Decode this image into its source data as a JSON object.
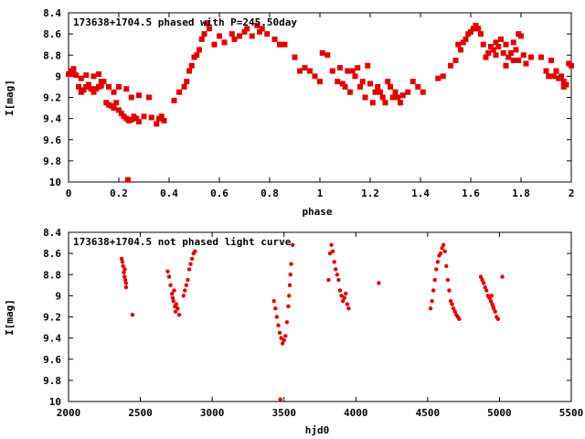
{
  "chart_data": [
    {
      "type": "scatter",
      "title": "173638+1704.5 phased with P=245.50day",
      "xlabel": "phase",
      "ylabel": "I[mag]",
      "xlim": [
        0,
        2
      ],
      "ylim": [
        10,
        8.4
      ],
      "y_inverted": true,
      "grid": false,
      "x_ticks": [
        "0",
        "0.2",
        "0.4",
        "0.6",
        "0.8",
        "1",
        "1.2",
        "1.4",
        "1.6",
        "1.8",
        "2"
      ],
      "y_ticks": [
        "8.4",
        "8.6",
        "8.8",
        "9",
        "9.2",
        "9.4",
        "9.6",
        "9.8",
        "10"
      ],
      "marker_color": "#e00000",
      "marker": "filled-square",
      "series": [
        {
          "points": [
            [
              0.0,
              8.98
            ],
            [
              0.01,
              8.95
            ],
            [
              0.02,
              8.93
            ],
            [
              0.03,
              8.99
            ],
            [
              0.04,
              9.1
            ],
            [
              0.05,
              9.15
            ],
            [
              0.06,
              9.13
            ],
            [
              0.07,
              9.1
            ],
            [
              0.08,
              9.08
            ],
            [
              0.09,
              9.12
            ],
            [
              0.1,
              9.15
            ],
            [
              0.11,
              9.12
            ],
            [
              0.12,
              9.1
            ],
            [
              0.13,
              9.09
            ],
            [
              0.14,
              9.05
            ],
            [
              0.15,
              9.25
            ],
            [
              0.16,
              9.27
            ],
            [
              0.17,
              9.28
            ],
            [
              0.18,
              9.3
            ],
            [
              0.19,
              9.25
            ],
            [
              0.2,
              9.32
            ],
            [
              0.21,
              9.35
            ],
            [
              0.22,
              9.38
            ],
            [
              0.23,
              9.4
            ],
            [
              0.24,
              9.42
            ],
            [
              0.25,
              9.41
            ],
            [
              0.26,
              9.38
            ],
            [
              0.27,
              9.4
            ],
            [
              0.28,
              9.43
            ],
            [
              0.3,
              9.38
            ],
            [
              0.32,
              9.2
            ],
            [
              0.33,
              9.39
            ],
            [
              0.35,
              9.45
            ],
            [
              0.36,
              9.4
            ],
            [
              0.37,
              9.38
            ],
            [
              0.38,
              9.42
            ],
            [
              0.236,
              9.98
            ],
            [
              0.02,
              8.98
            ],
            [
              0.05,
              9.02
            ],
            [
              0.07,
              8.99
            ],
            [
              0.1,
              9.0
            ],
            [
              0.12,
              8.98
            ],
            [
              0.13,
              9.05
            ],
            [
              0.16,
              9.1
            ],
            [
              0.18,
              9.15
            ],
            [
              0.2,
              9.1
            ],
            [
              0.23,
              9.12
            ],
            [
              0.25,
              9.2
            ],
            [
              0.28,
              9.18
            ],
            [
              0.42,
              9.23
            ],
            [
              0.44,
              9.15
            ],
            [
              0.46,
              9.1
            ],
            [
              0.47,
              9.05
            ],
            [
              0.48,
              8.95
            ],
            [
              0.49,
              8.9
            ],
            [
              0.5,
              8.82
            ],
            [
              0.51,
              8.8
            ],
            [
              0.52,
              8.75
            ],
            [
              0.53,
              8.65
            ],
            [
              0.54,
              8.6
            ],
            [
              0.55,
              8.5
            ],
            [
              0.56,
              8.55
            ],
            [
              0.58,
              8.7
            ],
            [
              0.6,
              8.62
            ],
            [
              0.62,
              8.68
            ],
            [
              0.65,
              8.6
            ],
            [
              0.66,
              8.65
            ],
            [
              0.68,
              8.62
            ],
            [
              0.7,
              8.58
            ],
            [
              0.71,
              8.55
            ],
            [
              0.73,
              8.62
            ],
            [
              0.75,
              8.52
            ],
            [
              0.76,
              8.58
            ],
            [
              0.77,
              8.55
            ],
            [
              0.79,
              8.6
            ],
            [
              0.82,
              8.65
            ],
            [
              0.84,
              8.7
            ],
            [
              0.86,
              8.7
            ],
            [
              0.9,
              8.82
            ],
            [
              0.92,
              8.95
            ],
            [
              0.94,
              8.92
            ],
            [
              0.96,
              8.95
            ],
            [
              0.98,
              9.0
            ],
            [
              1.0,
              9.05
            ],
            [
              1.01,
              8.78
            ],
            [
              1.03,
              8.8
            ],
            [
              1.05,
              8.95
            ],
            [
              1.07,
              9.05
            ],
            [
              1.09,
              9.07
            ],
            [
              1.1,
              9.1
            ],
            [
              1.12,
              9.15
            ],
            [
              1.13,
              8.95
            ],
            [
              1.15,
              8.92
            ],
            [
              1.17,
              9.05
            ],
            [
              1.18,
              9.2
            ],
            [
              1.2,
              9.07
            ],
            [
              1.22,
              9.15
            ],
            [
              1.23,
              9.1
            ],
            [
              1.25,
              9.2
            ],
            [
              1.27,
              9.05
            ],
            [
              1.28,
              9.1
            ],
            [
              1.3,
              9.15
            ],
            [
              1.31,
              9.2
            ],
            [
              1.33,
              9.18
            ],
            [
              1.35,
              9.15
            ],
            [
              1.37,
              9.05
            ],
            [
              1.39,
              9.1
            ],
            [
              1.41,
              9.15
            ],
            [
              1.08,
              8.92
            ],
            [
              1.11,
              8.95
            ],
            [
              1.14,
              9.0
            ],
            [
              1.16,
              9.1
            ],
            [
              1.19,
              8.9
            ],
            [
              1.21,
              9.25
            ],
            [
              1.24,
              9.15
            ],
            [
              1.26,
              9.25
            ],
            [
              1.29,
              9.2
            ],
            [
              1.32,
              9.25
            ],
            [
              1.47,
              9.02
            ],
            [
              1.49,
              9.0
            ],
            [
              1.52,
              8.9
            ],
            [
              1.54,
              8.85
            ],
            [
              1.55,
              8.7
            ],
            [
              1.56,
              8.75
            ],
            [
              1.57,
              8.68
            ],
            [
              1.58,
              8.65
            ],
            [
              1.59,
              8.6
            ],
            [
              1.6,
              8.58
            ],
            [
              1.61,
              8.55
            ],
            [
              1.62,
              8.52
            ],
            [
              1.63,
              8.55
            ],
            [
              1.64,
              8.6
            ],
            [
              1.65,
              8.7
            ],
            [
              1.67,
              8.78
            ],
            [
              1.68,
              8.72
            ],
            [
              1.69,
              8.75
            ],
            [
              1.7,
              8.68
            ],
            [
              1.71,
              8.72
            ],
            [
              1.72,
              8.65
            ],
            [
              1.73,
              8.78
            ],
            [
              1.74,
              8.7
            ],
            [
              1.75,
              8.82
            ],
            [
              1.76,
              8.78
            ],
            [
              1.77,
              8.85
            ],
            [
              1.78,
              8.75
            ],
            [
              1.79,
              8.6
            ],
            [
              1.8,
              8.62
            ],
            [
              1.82,
              8.88
            ],
            [
              1.66,
              8.82
            ],
            [
              1.7,
              8.8
            ],
            [
              1.74,
              8.9
            ],
            [
              1.77,
              8.68
            ],
            [
              1.79,
              8.85
            ],
            [
              1.81,
              8.8
            ],
            [
              1.84,
              8.82
            ],
            [
              1.88,
              8.82
            ],
            [
              1.9,
              8.95
            ],
            [
              1.92,
              8.85
            ],
            [
              1.93,
              9.0
            ],
            [
              1.95,
              9.02
            ],
            [
              1.96,
              9.0
            ],
            [
              1.97,
              9.05
            ],
            [
              1.98,
              9.08
            ],
            [
              1.99,
              8.88
            ],
            [
              2.0,
              8.9
            ],
            [
              1.91,
              9.0
            ],
            [
              1.94,
              8.95
            ],
            [
              1.97,
              9.1
            ]
          ]
        }
      ]
    },
    {
      "type": "scatter",
      "title": "173638+1704.5 not phased light curve",
      "xlabel": "hjd0",
      "ylabel": "I[mag]",
      "xlim": [
        2000,
        5500
      ],
      "ylim": [
        10,
        8.4
      ],
      "y_inverted": true,
      "grid": false,
      "x_ticks": [
        "2000",
        "2500",
        "3000",
        "3500",
        "4000",
        "4500",
        "5000",
        "5500"
      ],
      "y_ticks": [
        "8.4",
        "8.6",
        "8.8",
        "9",
        "9.2",
        "9.4",
        "9.6",
        "9.8",
        "10"
      ],
      "marker_color": "#e00000",
      "marker": "filled-circle",
      "series": [
        {
          "points": [
            [
              2370,
              8.65
            ],
            [
              2375,
              8.68
            ],
            [
              2380,
              8.72
            ],
            [
              2385,
              8.78
            ],
            [
              2390,
              8.82
            ],
            [
              2395,
              8.85
            ],
            [
              2400,
              8.88
            ],
            [
              2400,
              8.92
            ],
            [
              2392,
              8.75
            ],
            [
              2445,
              9.18
            ],
            [
              2690,
              8.77
            ],
            [
              2700,
              8.82
            ],
            [
              2710,
              8.9
            ],
            [
              2720,
              8.98
            ],
            [
              2725,
              9.02
            ],
            [
              2730,
              9.05
            ],
            [
              2740,
              9.1
            ],
            [
              2745,
              9.15
            ],
            [
              2750,
              9.08
            ],
            [
              2760,
              9.12
            ],
            [
              2770,
              9.18
            ],
            [
              2735,
              8.95
            ],
            [
              2800,
              9.0
            ],
            [
              2810,
              8.95
            ],
            [
              2820,
              8.9
            ],
            [
              2830,
              8.85
            ],
            [
              2840,
              8.75
            ],
            [
              2850,
              8.7
            ],
            [
              2860,
              8.65
            ],
            [
              2870,
              8.6
            ],
            [
              2880,
              8.58
            ],
            [
              3430,
              9.05
            ],
            [
              3440,
              9.12
            ],
            [
              3450,
              9.2
            ],
            [
              3460,
              9.28
            ],
            [
              3470,
              9.35
            ],
            [
              3480,
              9.4
            ],
            [
              3490,
              9.45
            ],
            [
              3500,
              9.42
            ],
            [
              3510,
              9.38
            ],
            [
              3520,
              9.25
            ],
            [
              3530,
              9.1
            ],
            [
              3535,
              9.0
            ],
            [
              3540,
              8.9
            ],
            [
              3545,
              8.8
            ],
            [
              3550,
              8.7
            ],
            [
              3560,
              8.52
            ],
            [
              3475,
              9.98
            ],
            [
              3810,
              8.85
            ],
            [
              3820,
              8.6
            ],
            [
              3830,
              8.52
            ],
            [
              3840,
              8.58
            ],
            [
              3850,
              8.68
            ],
            [
              3860,
              8.75
            ],
            [
              3870,
              8.8
            ],
            [
              3880,
              8.85
            ],
            [
              3890,
              8.95
            ],
            [
              3900,
              9.0
            ],
            [
              3910,
              9.05
            ],
            [
              3920,
              9.02
            ],
            [
              3930,
              8.98
            ],
            [
              3940,
              9.08
            ],
            [
              3950,
              9.12
            ],
            [
              4160,
              8.88
            ],
            [
              4520,
              9.12
            ],
            [
              4530,
              9.05
            ],
            [
              4540,
              8.95
            ],
            [
              4550,
              8.85
            ],
            [
              4560,
              8.75
            ],
            [
              4570,
              8.68
            ],
            [
              4580,
              8.62
            ],
            [
              4590,
              8.6
            ],
            [
              4600,
              8.55
            ],
            [
              4610,
              8.52
            ],
            [
              4620,
              8.58
            ],
            [
              4630,
              8.72
            ],
            [
              4640,
              8.85
            ],
            [
              4650,
              8.95
            ],
            [
              4660,
              9.05
            ],
            [
              4670,
              9.08
            ],
            [
              4680,
              9.12
            ],
            [
              4690,
              9.15
            ],
            [
              4700,
              9.18
            ],
            [
              4710,
              9.2
            ],
            [
              4720,
              9.22
            ],
            [
              4870,
              8.82
            ],
            [
              4880,
              8.85
            ],
            [
              4890,
              8.88
            ],
            [
              4900,
              8.92
            ],
            [
              4910,
              8.95
            ],
            [
              4920,
              9.0
            ],
            [
              4930,
              9.02
            ],
            [
              4940,
              9.05
            ],
            [
              4950,
              9.08
            ],
            [
              4960,
              9.12
            ],
            [
              4970,
              9.15
            ],
            [
              4980,
              9.2
            ],
            [
              4990,
              9.22
            ],
            [
              5020,
              8.82
            ],
            [
              4945,
              9.0
            ],
            [
              4955,
              9.1
            ]
          ]
        }
      ]
    }
  ]
}
